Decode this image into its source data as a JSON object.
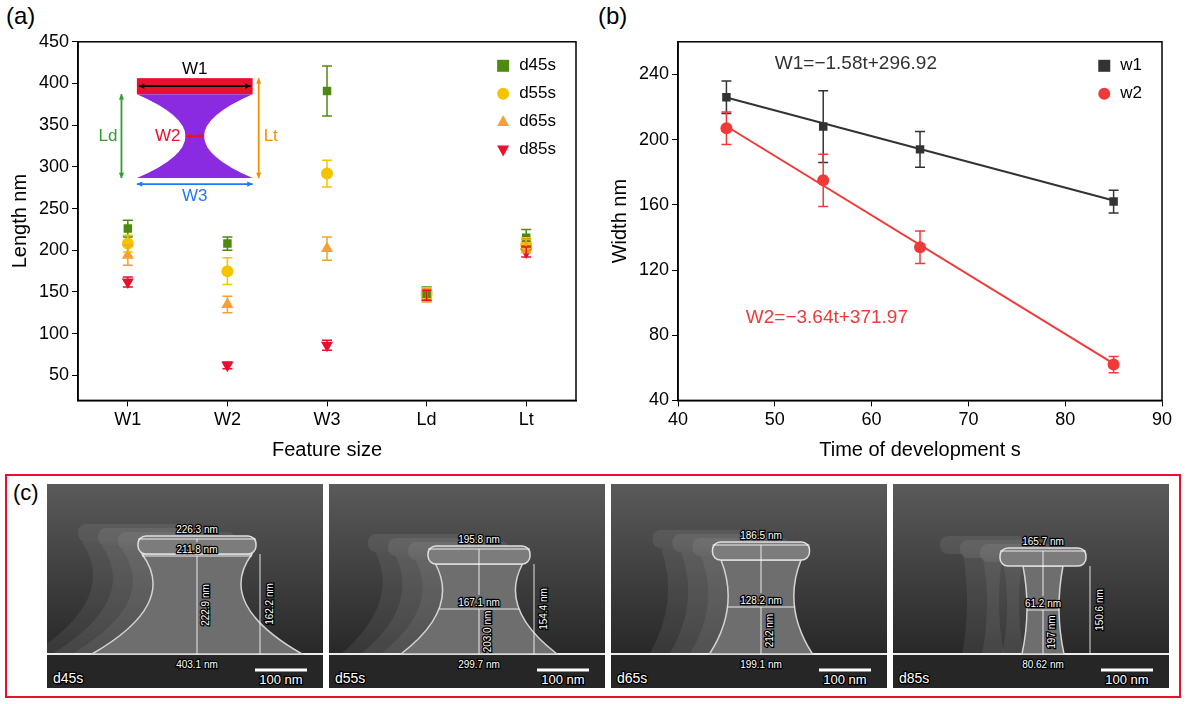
{
  "chart_data": [
    {
      "panel": "(a)",
      "type": "scatter",
      "x_label": "Feature size",
      "y_label": "Length nm",
      "categories": [
        "W1",
        "W2",
        "W3",
        "Ld",
        "Lt"
      ],
      "series": [
        {
          "name": "d45s",
          "color": "#4f8a10",
          "marker": "square",
          "values": [
            226,
            208,
            391,
            148,
            215
          ],
          "errors": [
            10,
            8,
            30,
            8,
            10
          ]
        },
        {
          "name": "d55s",
          "color": "#f5c400",
          "marker": "circle",
          "values": [
            208,
            175,
            292,
            147,
            207
          ],
          "errors": [
            10,
            16,
            16,
            8,
            8
          ]
        },
        {
          "name": "d65s",
          "color": "#f5a030",
          "marker": "triangle-up",
          "values": [
            194,
            135,
            202,
            146,
            205
          ],
          "errors": [
            12,
            10,
            14,
            8,
            8
          ]
        },
        {
          "name": "d85s",
          "color": "#e8102e",
          "marker": "triangle-down",
          "values": [
            162,
            62,
            86,
            146,
            198
          ],
          "errors": [
            6,
            4,
            6,
            6,
            6
          ]
        }
      ],
      "ylim": [
        20,
        450
      ],
      "yticks": [
        50,
        100,
        150,
        200,
        250,
        300,
        350,
        400,
        450
      ],
      "legend": "upper right",
      "grid": false,
      "annotations": [
        {
          "text": "W1",
          "color": "#000000"
        },
        {
          "text": "W2",
          "color": "#e8102e"
        },
        {
          "text": "W3",
          "color": "#1e78ff"
        },
        {
          "text": "Ld",
          "color": "#2ca02c"
        },
        {
          "text": "Lt",
          "color": "#ff8c00"
        }
      ]
    },
    {
      "panel": "(b)",
      "type": "scatter",
      "x_label": "Time of development s",
      "y_label": "Width nm",
      "series": [
        {
          "name": "w1",
          "color": "#333333",
          "marker": "square",
          "x": [
            45,
            55,
            65,
            85
          ],
          "values": [
            226,
            208,
            194,
            162
          ],
          "errors": [
            10,
            22,
            11,
            7
          ],
          "fit": {
            "x": [
              45,
              85
            ],
            "values": [
              225.8,
              162.6
            ]
          }
        },
        {
          "name": "w2",
          "color": "#f03a3a",
          "marker": "circle",
          "x": [
            45,
            55,
            65,
            85
          ],
          "values": [
            207,
            175,
            134,
            62
          ],
          "errors": [
            10,
            16,
            10,
            5
          ],
          "fit": {
            "x": [
              45,
              85
            ],
            "values": [
              208.2,
              62.6
            ]
          }
        }
      ],
      "xlim": [
        40,
        90
      ],
      "xticks": [
        40,
        50,
        60,
        70,
        80,
        90
      ],
      "ylim": [
        40,
        260
      ],
      "yticks": [
        40,
        80,
        120,
        160,
        200,
        240
      ],
      "legend": "upper right",
      "grid": false,
      "annotations": [
        {
          "text": "W1=−1.58t+296.92",
          "color": "#333333"
        },
        {
          "text": "W2=−3.64t+371.97",
          "color": "#f03a3a"
        }
      ]
    }
  ],
  "sem_images": {
    "panel": "(c)",
    "images": [
      {
        "label": "d45s",
        "scale_bar": "100 nm",
        "measurements": {
          "top_width": "226.3 nm",
          "neck_width": "211.8 nm",
          "height": "222.9 nm",
          "side_height": "162.2 nm",
          "base_width": "403.1 nm"
        }
      },
      {
        "label": "d55s",
        "scale_bar": "100 nm",
        "measurements": {
          "top_width": "195.8 nm",
          "neck_width": "167.1 nm",
          "height": "203.0 nm",
          "side_height": "154.4 nm",
          "base_width": "299.7 nm"
        }
      },
      {
        "label": "d65s",
        "scale_bar": "100 nm",
        "measurements": {
          "top_width": "186.5 nm",
          "neck_width": "128.2 nm",
          "height": "212 nm",
          "base_width": "199.1 nm"
        }
      },
      {
        "label": "d85s",
        "scale_bar": "100 nm",
        "measurements": {
          "top_width": "165.7 nm",
          "neck_width": "61.2 nm",
          "height": "197 nm",
          "side_height": "150.6 nm",
          "base_width": "80.62 nm"
        }
      }
    ]
  }
}
